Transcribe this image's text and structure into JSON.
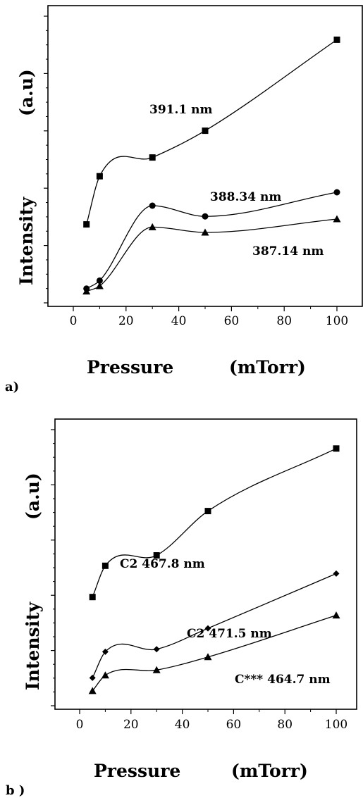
{
  "chart_data": [
    {
      "type": "line",
      "panel_label": "a)",
      "xlabel": "Pressure",
      "xunit": "(mTorr)",
      "ylabel": "Intensity",
      "yunit": "(a.u)",
      "xlim": [
        -10,
        105
      ],
      "xticks": [
        "0",
        "20",
        "40",
        "60",
        "80",
        "100"
      ],
      "ylim": [
        0,
        100
      ],
      "series": [
        {
          "name": "391.1 nm",
          "marker": "square",
          "x": [
            5,
            10,
            30,
            50,
            100
          ],
          "y": [
            28,
            46,
            53,
            63,
            97
          ]
        },
        {
          "name": "388.34 nm",
          "marker": "circle",
          "x": [
            5,
            10,
            30,
            50,
            100
          ],
          "y": [
            4,
            7,
            35,
            31,
            40
          ]
        },
        {
          "name": "387.14 nm",
          "marker": "triangle",
          "x": [
            5,
            10,
            30,
            50,
            100
          ],
          "y": [
            3,
            5,
            27,
            25,
            30
          ]
        }
      ]
    },
    {
      "type": "line",
      "panel_label": "b )",
      "xlabel": "Pressure",
      "xunit": "(mTorr)",
      "ylabel": "Intensity",
      "yunit": "(a.u)",
      "xlim": [
        -10,
        105
      ],
      "xticks": [
        "0",
        "20",
        "40",
        "60",
        "80",
        "100"
      ],
      "ylim": [
        0,
        100
      ],
      "series": [
        {
          "name": "C2 467.8 nm",
          "marker": "square",
          "x": [
            5,
            10,
            30,
            50,
            100
          ],
          "y": [
            39,
            51,
            55,
            72,
            96
          ]
        },
        {
          "name": "C2 471.5 nm",
          "marker": "diamond",
          "x": [
            5,
            10,
            30,
            50,
            100
          ],
          "y": [
            8,
            18,
            19,
            27,
            48
          ]
        },
        {
          "name": "C*** 464.7 nm",
          "marker": "triangle",
          "x": [
            5,
            10,
            30,
            50,
            100
          ],
          "y": [
            3,
            9,
            11,
            16,
            32
          ]
        }
      ]
    }
  ]
}
